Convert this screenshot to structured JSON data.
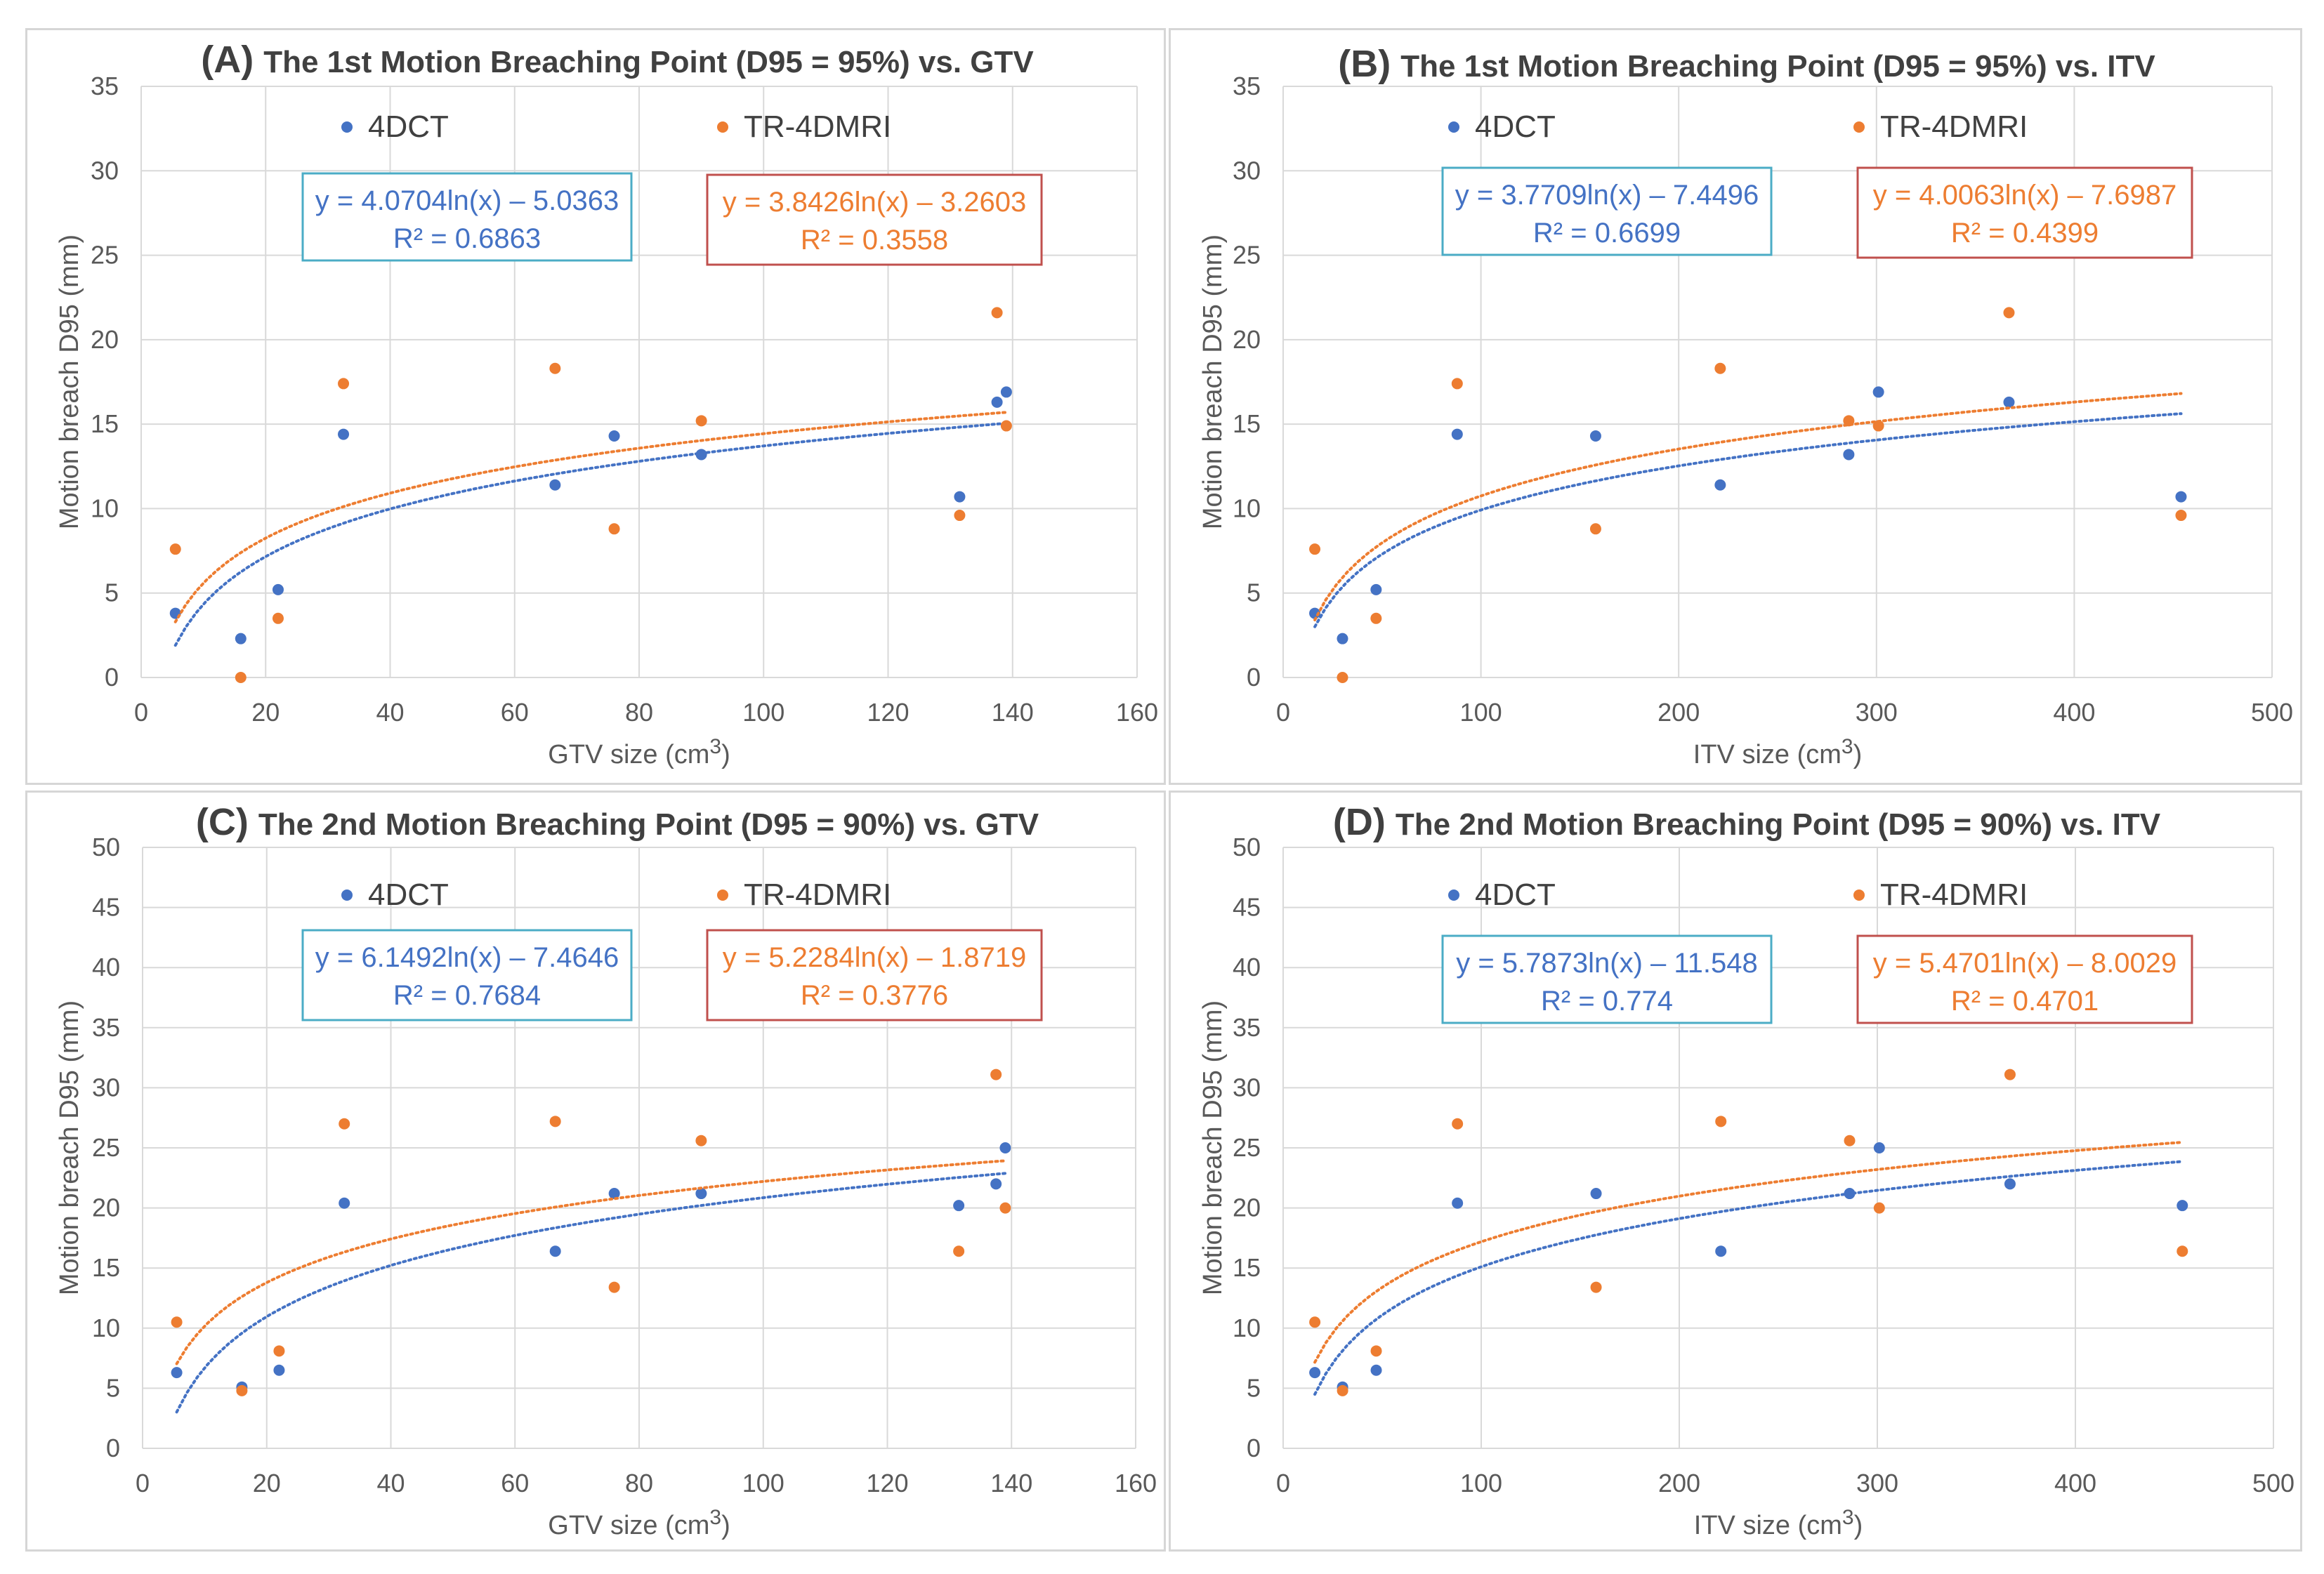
{
  "colors": {
    "series_4dct": "#4472c4",
    "series_tr4dmri": "#ed7d31",
    "grid": "#d9d9d9",
    "eq_box_4dct": "#4bacc6",
    "eq_box_tr4dmri": "#c0504d"
  },
  "chart_data": [
    {
      "id": "A",
      "type": "scatter",
      "title_prefix": "(A)",
      "title": "The 1st Motion Breaching Point (D95 = 95%) vs. GTV",
      "xlabel": "GTV size (cm",
      "xlabel_sup": "3",
      "xlabel_close": ")",
      "ylabel": "Motion breach D95 (mm)",
      "xlim": [
        0,
        160
      ],
      "xticks": [
        0,
        20,
        40,
        60,
        80,
        100,
        120,
        140,
        160
      ],
      "ylim": [
        0,
        35
      ],
      "yticks": [
        0,
        5,
        10,
        15,
        20,
        25,
        30,
        35
      ],
      "series": [
        {
          "name": "4DCT",
          "x": [
            5.5,
            16,
            22,
            32.5,
            66.5,
            76,
            90,
            131.5,
            137.5,
            139
          ],
          "y": [
            3.8,
            2.3,
            5.2,
            14.4,
            11.4,
            14.3,
            13.2,
            10.7,
            16.3,
            16.9
          ],
          "trend": {
            "a": 4.0704,
            "b": -5.0363,
            "x_from": 5.5,
            "x_to": 139
          },
          "equation": "y = 4.0704ln(x) – 5.0363",
          "r2": "R² = 0.6863"
        },
        {
          "name": "TR-4DMRI",
          "x": [
            5.5,
            16,
            22,
            32.5,
            66.5,
            76,
            90,
            131.5,
            137.5,
            139
          ],
          "y": [
            7.6,
            0,
            3.5,
            17.4,
            18.3,
            8.8,
            15.2,
            9.6,
            21.6,
            14.9
          ],
          "trend": {
            "a": 3.8426,
            "b": -3.2603,
            "x_from": 5.5,
            "x_to": 139
          },
          "equation": "y = 3.8426ln(x) – 3.2603",
          "r2": "R² = 0.3558"
        }
      ]
    },
    {
      "id": "B",
      "type": "scatter",
      "title_prefix": "(B)",
      "title": "The 1st Motion Breaching Point (D95 = 95%) vs. ITV",
      "xlabel": "ITV size (cm",
      "xlabel_sup": "3",
      "xlabel_close": ")",
      "ylabel": "Motion breach D95 (mm)",
      "xlim": [
        0,
        500
      ],
      "xticks": [
        0,
        100,
        200,
        300,
        400,
        500
      ],
      "ylim": [
        0,
        35
      ],
      "yticks": [
        0,
        5,
        10,
        15,
        20,
        25,
        30,
        35
      ],
      "series": [
        {
          "name": "4DCT",
          "x": [
            16,
            30,
            47,
            88,
            158,
            221,
            286,
            301,
            367,
            454
          ],
          "y": [
            3.8,
            2.3,
            5.2,
            14.4,
            14.3,
            11.4,
            13.2,
            16.9,
            16.3,
            10.7
          ],
          "trend": {
            "a": 3.7709,
            "b": -7.4496,
            "x_from": 16,
            "x_to": 454
          },
          "equation": "y = 3.7709ln(x) – 7.4496",
          "r2": "R² = 0.6699"
        },
        {
          "name": "TR-4DMRI",
          "x": [
            16,
            30,
            47,
            88,
            158,
            221,
            286,
            301,
            367,
            454
          ],
          "y": [
            7.6,
            0,
            3.5,
            17.4,
            8.8,
            18.3,
            15.2,
            14.9,
            21.6,
            9.6
          ],
          "trend": {
            "a": 4.0063,
            "b": -7.6987,
            "x_from": 16,
            "x_to": 454
          },
          "equation": "y = 4.0063ln(x) – 7.6987",
          "r2": "R² = 0.4399"
        }
      ]
    },
    {
      "id": "C",
      "type": "scatter",
      "title_prefix": "(C)",
      "title": "The 2nd Motion Breaching Point (D95 = 90%) vs. GTV",
      "xlabel": "GTV size (cm",
      "xlabel_sup": "3",
      "xlabel_close": ")",
      "ylabel": "Motion breach D95 (mm)",
      "xlim": [
        0,
        160
      ],
      "xticks": [
        0,
        20,
        40,
        60,
        80,
        100,
        120,
        140,
        160
      ],
      "ylim": [
        0,
        50
      ],
      "yticks": [
        0,
        5,
        10,
        15,
        20,
        25,
        30,
        35,
        40,
        45,
        50
      ],
      "series": [
        {
          "name": "4DCT",
          "x": [
            5.5,
            16,
            22,
            32.5,
            66.5,
            76,
            90,
            131.5,
            137.5,
            139
          ],
          "y": [
            6.3,
            5.1,
            6.5,
            20.4,
            16.4,
            21.2,
            21.2,
            20.2,
            22.0,
            25.0
          ],
          "trend": {
            "a": 6.1492,
            "b": -7.4646,
            "x_from": 5.5,
            "x_to": 139
          },
          "equation": "y = 6.1492ln(x) – 7.4646",
          "r2": "R² = 0.7684"
        },
        {
          "name": "TR-4DMRI",
          "x": [
            5.5,
            16,
            22,
            32.5,
            66.5,
            76,
            90,
            131.5,
            137.5,
            139
          ],
          "y": [
            10.5,
            4.8,
            8.1,
            27.0,
            27.2,
            13.4,
            25.6,
            16.4,
            31.1,
            20.0
          ],
          "trend": {
            "a": 5.2284,
            "b": -1.8719,
            "x_from": 5.5,
            "x_to": 139
          },
          "equation": "y = 5.2284ln(x) – 1.8719",
          "r2": "R² = 0.3776"
        }
      ]
    },
    {
      "id": "D",
      "type": "scatter",
      "title_prefix": "(D)",
      "title": "The 2nd Motion Breaching Point (D95 = 90%) vs. ITV",
      "xlabel": "ITV size (cm",
      "xlabel_sup": "3",
      "xlabel_close": ")",
      "ylabel": "Motion breach D95 (mm)",
      "xlim": [
        0,
        500
      ],
      "xticks": [
        0,
        100,
        200,
        300,
        400,
        500
      ],
      "ylim": [
        0,
        50
      ],
      "yticks": [
        0,
        5,
        10,
        15,
        20,
        25,
        30,
        35,
        40,
        45,
        50
      ],
      "series": [
        {
          "name": "4DCT",
          "x": [
            16,
            30,
            47,
            88,
            158,
            221,
            286,
            301,
            367,
            454
          ],
          "y": [
            6.3,
            5.1,
            6.5,
            20.4,
            21.2,
            16.4,
            21.2,
            25.0,
            22.0,
            20.2
          ],
          "trend": {
            "a": 5.7873,
            "b": -11.548,
            "x_from": 16,
            "x_to": 454
          },
          "equation": "y = 5.7873ln(x) – 11.548",
          "r2": "R² = 0.774"
        },
        {
          "name": "TR-4DMRI",
          "x": [
            16,
            30,
            47,
            88,
            158,
            221,
            286,
            301,
            367,
            454
          ],
          "y": [
            10.5,
            4.8,
            8.1,
            27.0,
            13.4,
            27.2,
            25.6,
            20.0,
            31.1,
            16.4
          ],
          "trend": {
            "a": 5.4701,
            "b": -8.0029,
            "x_from": 16,
            "x_to": 454
          },
          "equation": "y = 5.4701ln(x) – 8.0029",
          "r2": "R² = 0.4701"
        }
      ]
    }
  ]
}
